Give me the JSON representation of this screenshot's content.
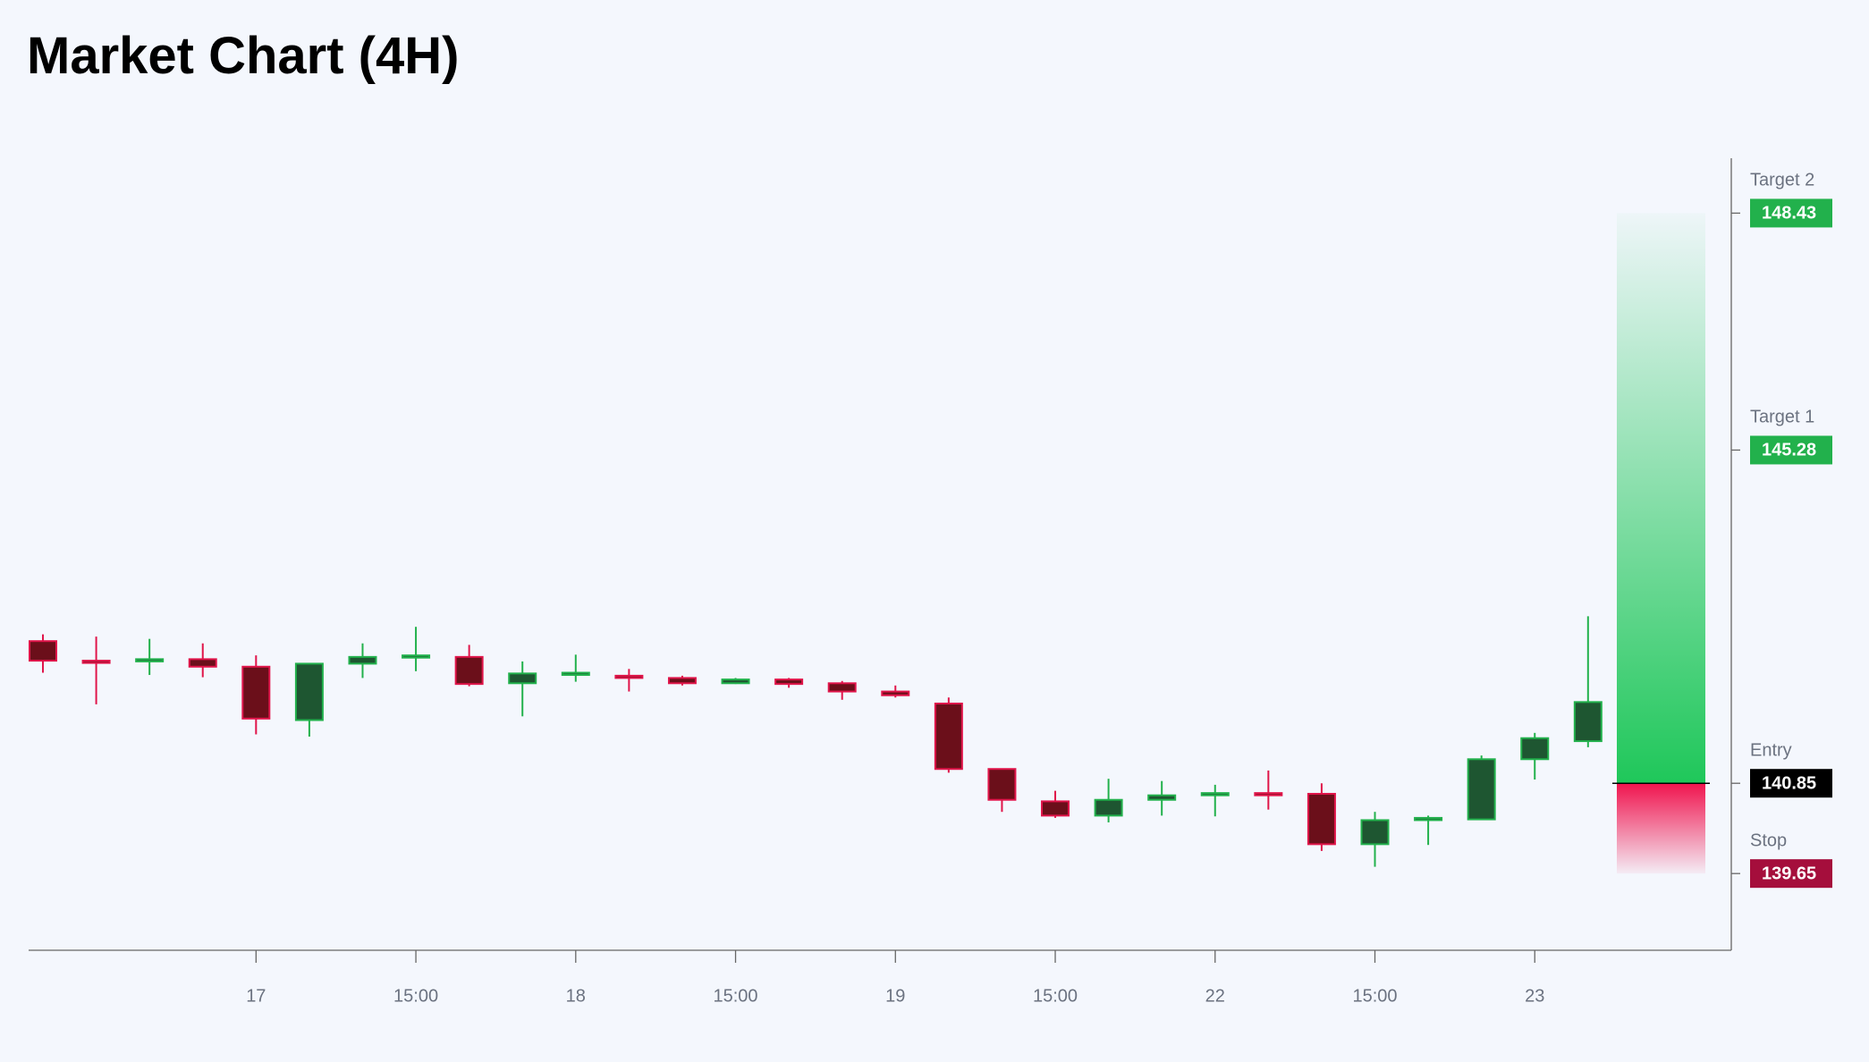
{
  "chart_data": {
    "type": "candlestick",
    "title": "Market Chart (4H)",
    "categories": [
      null,
      null,
      null,
      null,
      "17",
      null,
      null,
      "15:00",
      null,
      null,
      "18",
      null,
      null,
      "15:00",
      null,
      null,
      "19",
      null,
      null,
      "15:00",
      null,
      null,
      "22",
      null,
      null,
      "15:00",
      null,
      null,
      "23",
      null
    ],
    "open": [
      142.74,
      142.48,
      142.47,
      142.5,
      142.4,
      141.69,
      142.44,
      142.52,
      142.53,
      142.18,
      142.29,
      142.28,
      142.25,
      142.18,
      142.23,
      142.18,
      142.07,
      141.91,
      141.04,
      140.61,
      140.42,
      140.63,
      140.69,
      140.72,
      140.71,
      140.04,
      140.36,
      140.37,
      141.17,
      141.41
    ],
    "high": [
      142.83,
      142.8,
      142.77,
      142.71,
      142.55,
      142.44,
      142.71,
      142.93,
      142.69,
      142.47,
      142.56,
      142.37,
      142.28,
      142.25,
      142.25,
      142.21,
      142.15,
      141.99,
      141.04,
      140.75,
      140.91,
      140.88,
      140.83,
      141.02,
      140.85,
      140.47,
      140.42,
      141.22,
      141.52,
      143.07
    ],
    "low": [
      142.32,
      141.9,
      142.29,
      142.26,
      141.5,
      141.47,
      142.25,
      142.34,
      142.14,
      141.74,
      142.2,
      142.07,
      142.15,
      142.17,
      142.12,
      141.96,
      141.99,
      140.99,
      140.47,
      140.39,
      140.33,
      140.42,
      140.41,
      140.5,
      139.95,
      139.74,
      140.03,
      140.36,
      140.9,
      141.33
    ],
    "close": [
      142.48,
      142.45,
      142.5,
      142.4,
      141.71,
      142.44,
      142.53,
      142.55,
      142.17,
      142.31,
      142.32,
      142.25,
      142.18,
      142.23,
      142.17,
      142.07,
      142.02,
      141.04,
      140.63,
      140.42,
      140.63,
      140.69,
      140.72,
      140.69,
      140.04,
      140.36,
      140.39,
      141.17,
      141.45,
      141.93
    ],
    "up_color": "#22b14c",
    "up_fill": "#1e5631",
    "down_color": "#e0154a",
    "down_fill": "#6b0f1a",
    "ylim": [
      138.63,
      149.16
    ],
    "levels": [
      {
        "label": "Target 2",
        "value": 148.43,
        "color": "#22b14c"
      },
      {
        "label": "Target 1",
        "value": 145.28,
        "color": "#22b14c"
      },
      {
        "label": "Entry",
        "value": 140.85,
        "color": "#000000"
      },
      {
        "label": "Stop",
        "value": 139.65,
        "color": "#a50e3c"
      }
    ]
  }
}
